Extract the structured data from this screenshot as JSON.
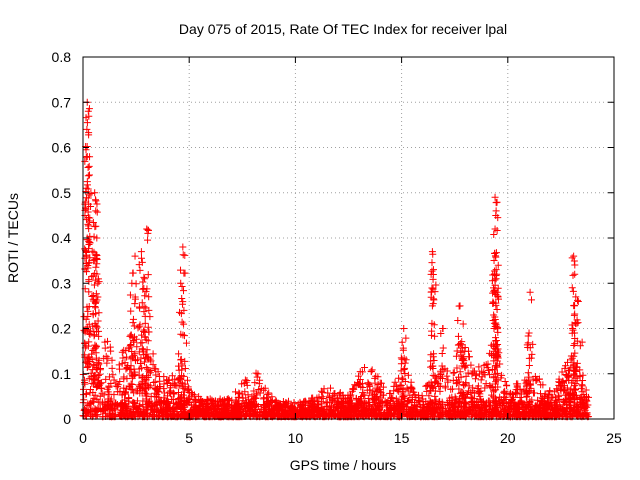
{
  "chart_data": {
    "type": "scatter",
    "title": "Day 075 of 2015, Rate Of TEC Index for receiver lpal",
    "xlabel": "GPS time / hours",
    "ylabel": "ROTI / TECUs",
    "xlim": [
      0,
      25
    ],
    "ylim": [
      0,
      0.8
    ],
    "x_ticks": [
      0,
      5,
      10,
      15,
      20,
      25
    ],
    "y_ticks": [
      0,
      0.1,
      0.2,
      0.3,
      0.4,
      0.5,
      0.6,
      0.7,
      0.8
    ],
    "x_tick_labels": [
      "0",
      "5",
      "10",
      "15",
      "20",
      "25"
    ],
    "y_tick_labels": [
      "0",
      "0.1",
      "0.2",
      "0.3",
      "0.4",
      "0.5",
      "0.6",
      "0.7",
      "0.8"
    ],
    "grid": true,
    "marker": "+",
    "color": "#ff0000",
    "series": [
      {
        "name": "ROTI",
        "peaks": [
          {
            "x": 0.2,
            "y": 0.7
          },
          {
            "x": 0.25,
            "y": 0.68
          },
          {
            "x": 0.2,
            "y": 0.58
          },
          {
            "x": 0.15,
            "y": 0.51
          },
          {
            "x": 0.55,
            "y": 0.5
          },
          {
            "x": 0.6,
            "y": 0.46
          },
          {
            "x": 0.65,
            "y": 0.4
          },
          {
            "x": 0.5,
            "y": 0.35
          },
          {
            "x": 0.7,
            "y": 0.3
          },
          {
            "x": 2.45,
            "y": 0.36
          },
          {
            "x": 2.75,
            "y": 0.37
          },
          {
            "x": 3.0,
            "y": 0.42
          },
          {
            "x": 2.3,
            "y": 0.3
          },
          {
            "x": 2.9,
            "y": 0.31
          },
          {
            "x": 3.1,
            "y": 0.24
          },
          {
            "x": 4.7,
            "y": 0.38
          },
          {
            "x": 4.6,
            "y": 0.3
          },
          {
            "x": 4.75,
            "y": 0.24
          },
          {
            "x": 15.1,
            "y": 0.2
          },
          {
            "x": 16.45,
            "y": 0.37
          },
          {
            "x": 16.5,
            "y": 0.33
          },
          {
            "x": 16.45,
            "y": 0.25
          },
          {
            "x": 16.95,
            "y": 0.2
          },
          {
            "x": 17.75,
            "y": 0.25
          },
          {
            "x": 17.9,
            "y": 0.21
          },
          {
            "x": 19.4,
            "y": 0.49
          },
          {
            "x": 19.45,
            "y": 0.46
          },
          {
            "x": 19.4,
            "y": 0.42
          },
          {
            "x": 19.45,
            "y": 0.33
          },
          {
            "x": 19.5,
            "y": 0.28
          },
          {
            "x": 19.35,
            "y": 0.2
          },
          {
            "x": 21.05,
            "y": 0.28
          },
          {
            "x": 21.0,
            "y": 0.19
          },
          {
            "x": 23.1,
            "y": 0.36
          },
          {
            "x": 23.15,
            "y": 0.32
          },
          {
            "x": 23.2,
            "y": 0.27
          },
          {
            "x": 23.05,
            "y": 0.2
          },
          {
            "x": 23.5,
            "y": 0.17
          }
        ],
        "envelope": [
          {
            "x": 0.0,
            "y": 0.12
          },
          {
            "x": 0.3,
            "y": 0.3
          },
          {
            "x": 0.6,
            "y": 0.25
          },
          {
            "x": 1.0,
            "y": 0.18
          },
          {
            "x": 1.5,
            "y": 0.14
          },
          {
            "x": 2.0,
            "y": 0.15
          },
          {
            "x": 2.5,
            "y": 0.22
          },
          {
            "x": 3.0,
            "y": 0.2
          },
          {
            "x": 3.5,
            "y": 0.12
          },
          {
            "x": 4.0,
            "y": 0.08
          },
          {
            "x": 4.7,
            "y": 0.12
          },
          {
            "x": 5.2,
            "y": 0.05
          },
          {
            "x": 6.0,
            "y": 0.04
          },
          {
            "x": 7.0,
            "y": 0.04
          },
          {
            "x": 7.6,
            "y": 0.09
          },
          {
            "x": 8.3,
            "y": 0.1
          },
          {
            "x": 9.0,
            "y": 0.04
          },
          {
            "x": 10.0,
            "y": 0.02
          },
          {
            "x": 11.0,
            "y": 0.05
          },
          {
            "x": 11.5,
            "y": 0.07
          },
          {
            "x": 12.5,
            "y": 0.05
          },
          {
            "x": 13.2,
            "y": 0.12
          },
          {
            "x": 13.8,
            "y": 0.1
          },
          {
            "x": 14.5,
            "y": 0.05
          },
          {
            "x": 15.1,
            "y": 0.15
          },
          {
            "x": 15.6,
            "y": 0.05
          },
          {
            "x": 16.5,
            "y": 0.08
          },
          {
            "x": 16.9,
            "y": 0.18
          },
          {
            "x": 17.3,
            "y": 0.06
          },
          {
            "x": 17.8,
            "y": 0.22
          },
          {
            "x": 18.5,
            "y": 0.1
          },
          {
            "x": 19.4,
            "y": 0.18
          },
          {
            "x": 20.0,
            "y": 0.06
          },
          {
            "x": 20.7,
            "y": 0.1
          },
          {
            "x": 21.1,
            "y": 0.12
          },
          {
            "x": 21.8,
            "y": 0.06
          },
          {
            "x": 22.3,
            "y": 0.08
          },
          {
            "x": 23.1,
            "y": 0.15
          },
          {
            "x": 23.5,
            "y": 0.1
          },
          {
            "x": 23.8,
            "y": 0.05
          }
        ]
      }
    ]
  }
}
